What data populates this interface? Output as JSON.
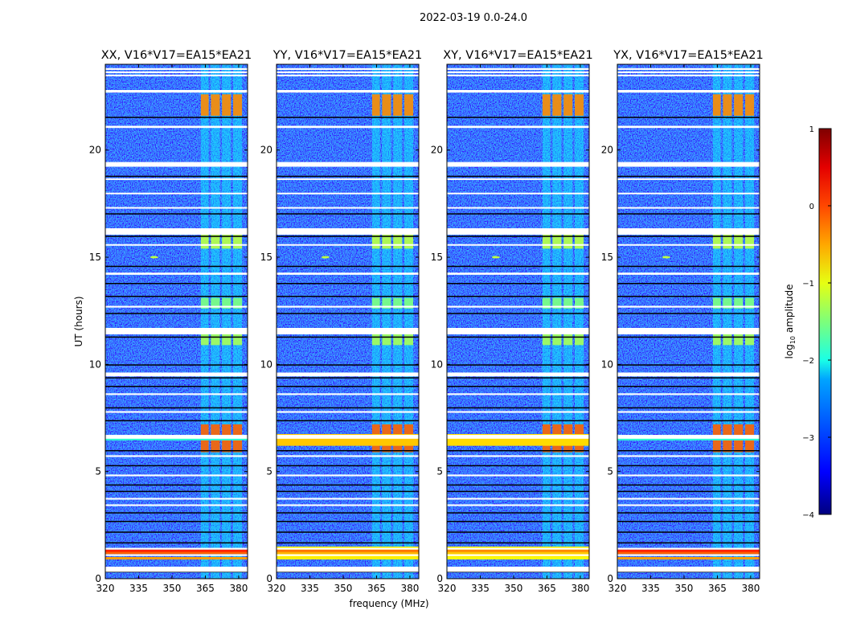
{
  "chart_data": {
    "type": "heatmap",
    "suptitle": "2022-03-19 0.0-24.0",
    "xlabel": "frequency (MHz)",
    "ylabel": "UT (hours)",
    "xlim": [
      320,
      384
    ],
    "ylim": [
      0,
      24
    ],
    "xticks": [
      "320",
      "335",
      "350",
      "365",
      "380"
    ],
    "xtick_values": [
      320,
      335,
      350,
      365,
      380
    ],
    "yticks": [
      "0",
      "5",
      "10",
      "15",
      "20"
    ],
    "ytick_values": [
      0,
      5,
      10,
      15,
      20
    ],
    "panels": [
      {
        "title": "XX, V16*V17=EA15*EA21",
        "broadband_rfi": [
          [
            6.45,
            6.6,
            1.2
          ]
        ],
        "low_band_level": 0.6
      },
      {
        "title": "YY, V16*V17=EA15*EA21",
        "broadband_rfi": [
          [
            6.2,
            6.75,
            0.2
          ],
          [
            1.0,
            1.5,
            0.0
          ]
        ],
        "low_band_level": 0.2
      },
      {
        "title": "XY, V16*V17=EA15*EA21",
        "broadband_rfi": [
          [
            6.2,
            6.75,
            0.1
          ],
          [
            1.0,
            1.5,
            0.0
          ]
        ],
        "low_band_level": 0.1
      },
      {
        "title": "YX, V16*V17=EA15*EA21",
        "broadband_rfi": [
          [
            6.45,
            6.6,
            1.2
          ]
        ],
        "low_band_level": 0.6
      }
    ],
    "rfi_channels_mhz": [
      [
        363,
        366.5
      ],
      [
        367.5,
        371.5
      ],
      [
        372.5,
        376.5
      ],
      [
        377.5,
        381.5
      ]
    ],
    "rfi_blocks_hours": [
      [
        21.6,
        22.6,
        -0.3
      ],
      [
        5.9,
        7.2,
        -0.1
      ],
      [
        15.4,
        16.1,
        -1.2
      ],
      [
        10.9,
        11.4,
        -1.3
      ],
      [
        12.6,
        13.1,
        -1.5
      ]
    ],
    "flagged_rows_hours": [
      [
        23.78,
        0.08
      ],
      [
        23.63,
        0.08
      ],
      [
        23.48,
        0.08
      ],
      [
        22.74,
        0.12
      ],
      [
        21.08,
        0.1
      ],
      [
        19.33,
        0.22
      ],
      [
        18.65,
        0.06
      ],
      [
        17.98,
        0.06
      ],
      [
        17.31,
        0.06
      ],
      [
        16.2,
        0.3
      ],
      [
        15.58,
        0.06
      ],
      [
        14.23,
        0.1
      ],
      [
        12.69,
        0.08
      ],
      [
        11.55,
        0.3
      ],
      [
        9.53,
        0.18
      ],
      [
        8.61,
        0.08
      ],
      [
        7.78,
        0.08
      ],
      [
        6.62,
        0.18
      ],
      [
        5.72,
        0.08
      ],
      [
        4.82,
        0.08
      ],
      [
        3.73,
        0.08
      ],
      [
        3.43,
        0.08
      ],
      [
        1.4,
        0.08
      ],
      [
        1.1,
        0.08
      ],
      [
        0.44,
        0.24
      ]
    ],
    "gap_rows_hours": [
      21.55,
      18.8,
      17.05,
      16.0,
      14.6,
      13.8,
      13.2,
      12.4,
      11.3,
      10.0,
      9.4,
      9.0,
      8.0,
      7.4,
      6.0,
      5.3,
      4.4,
      4.1,
      3.1,
      2.7,
      2.2,
      1.7,
      0.35
    ],
    "narrow_rfi": [
      {
        "freq": 342,
        "hour": 15.0
      }
    ],
    "colorbar": {
      "label_main": "log",
      "label_sub": "10",
      "label_rest": " amplitude",
      "range": [
        -4,
        1
      ],
      "ticks": [
        "−4",
        "−3",
        "−2",
        "−1",
        "0",
        "1"
      ],
      "tick_values": [
        -4,
        -3,
        -2,
        -1,
        0,
        1
      ],
      "colormap": "jet"
    }
  }
}
